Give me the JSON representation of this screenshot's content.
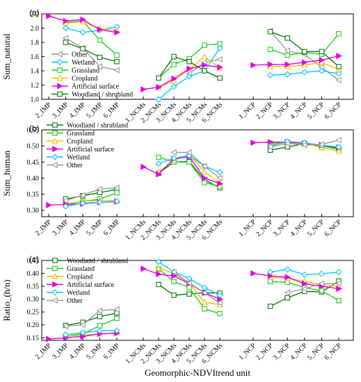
{
  "categories": [
    "2_IMP",
    "3_IMP",
    "4_IMP",
    "5_IMP",
    "6_IMP",
    "1_NCMs",
    "2_NCMs",
    "3_NCMs",
    "4_NCMs",
    "5_NCMs",
    "6_NCMs",
    "1_NCP",
    "2_NCP",
    "3_NCP",
    "4_NCP",
    "5_NCP",
    "6_NCP"
  ],
  "xlabel": "Geomorphic-NDVItrend unit",
  "chart_data": [
    {
      "type": "line",
      "panel": "(a)",
      "ylabel": "Sum_natural",
      "ylim": [
        1.0,
        2.2
      ],
      "yticks": [
        1.0,
        1.2,
        1.4,
        1.6,
        1.8,
        2.0,
        2.2
      ],
      "legend": [
        "Other",
        "Wetland",
        "Grassland",
        "Cropland",
        "Artificial surface",
        "Woodland / shrubland"
      ],
      "series": [
        {
          "name": "Other",
          "color": "#999999",
          "marker": "triangle-left",
          "values": [
            null,
            1.86,
            1.72,
            1.46,
            1.41,
            null,
            null,
            null,
            1.36,
            1.52,
            1.56,
            null,
            1.96,
            1.68,
            1.63,
            1.45,
            1.27
          ]
        },
        {
          "name": "Wetland",
          "color": "#00c8ff",
          "marker": "diamond",
          "values": [
            null,
            2.0,
            1.94,
            1.97,
            2.02,
            null,
            1.0,
            1.18,
            1.32,
            1.4,
            1.72,
            null,
            1.34,
            1.35,
            1.38,
            1.4,
            1.36
          ]
        },
        {
          "name": "Grassland",
          "color": "#22cc22",
          "marker": "square",
          "values": [
            null,
            2.08,
            2.1,
            1.83,
            1.62,
            null,
            1.3,
            1.49,
            1.57,
            1.76,
            1.78,
            null,
            1.7,
            1.62,
            1.66,
            1.63,
            1.92
          ]
        },
        {
          "name": "Cropland",
          "color": "#f2c200",
          "marker": "triangle-up",
          "values": [
            null,
            2.07,
            2.09,
            1.99,
            1.97,
            null,
            1.17,
            1.26,
            1.42,
            1.6,
            1.44,
            null,
            1.46,
            1.46,
            1.48,
            1.52,
            1.42
          ]
        },
        {
          "name": "Artificial surface",
          "color": "#e600e6",
          "marker": "triangle-right",
          "values": [
            2.17,
            2.1,
            2.12,
            1.98,
            1.94,
            1.14,
            1.17,
            1.29,
            1.43,
            1.48,
            1.45,
            1.48,
            1.49,
            1.49,
            1.52,
            1.55,
            1.61
          ]
        },
        {
          "name": "Woodland / shrubland",
          "color": "#0e7a0e",
          "marker": "square",
          "values": [
            null,
            1.8,
            1.71,
            1.59,
            1.53,
            null,
            1.3,
            1.6,
            1.53,
            1.4,
            1.3,
            null,
            1.95,
            1.86,
            1.67,
            1.67,
            1.46
          ]
        }
      ]
    },
    {
      "type": "line",
      "panel": "(b)",
      "ylabel": "Sum_human",
      "ylim": [
        0.28,
        0.55
      ],
      "yticks": [
        0.3,
        0.35,
        0.4,
        0.45,
        0.5,
        0.55
      ],
      "legend": [
        "Woodland / shrubland",
        "Grassland",
        "Cropland",
        "Artificial surface",
        "Wetland",
        "Other"
      ],
      "series": [
        {
          "name": "Woodland / shrubland",
          "color": "#0e7a0e",
          "marker": "square",
          "values": [
            null,
            0.335,
            0.345,
            0.355,
            0.365,
            null,
            0.415,
            0.45,
            0.452,
            0.395,
            0.37,
            null,
            0.487,
            0.497,
            0.507,
            0.5,
            0.493
          ]
        },
        {
          "name": "Grassland",
          "color": "#22cc22",
          "marker": "square",
          "values": [
            null,
            0.318,
            0.327,
            0.335,
            0.354,
            null,
            0.465,
            0.45,
            0.45,
            0.386,
            0.375,
            null,
            0.508,
            0.511,
            0.508,
            0.5,
            0.49
          ]
        },
        {
          "name": "Cropland",
          "color": "#f2c200",
          "marker": "triangle-up",
          "values": [
            null,
            0.32,
            0.328,
            0.33,
            0.33,
            null,
            0.42,
            0.455,
            0.472,
            0.42,
            0.385,
            null,
            0.505,
            0.51,
            0.508,
            0.495,
            0.484
          ]
        },
        {
          "name": "Artificial surface",
          "color": "#e600e6",
          "marker": "triangle-right",
          "values": [
            0.316,
            0.318,
            0.32,
            0.325,
            0.327,
            0.435,
            0.412,
            0.46,
            0.467,
            0.4,
            0.383,
            0.51,
            0.512,
            0.512,
            0.508,
            0.503,
            0.495
          ]
        },
        {
          "name": "Wetland",
          "color": "#00c8ff",
          "marker": "diamond",
          "values": [
            null,
            0.312,
            0.322,
            0.325,
            0.328,
            null,
            0.445,
            0.462,
            0.47,
            0.437,
            0.418,
            null,
            0.5,
            0.514,
            0.51,
            0.502,
            0.497
          ]
        },
        {
          "name": "Other",
          "color": "#999999",
          "marker": "triangle-left",
          "values": [
            null,
            0.33,
            0.347,
            0.366,
            0.37,
            null,
            null,
            0.48,
            0.48,
            0.437,
            0.4,
            null,
            0.497,
            0.508,
            0.503,
            0.505,
            0.518
          ]
        }
      ]
    },
    {
      "type": "line",
      "panel": "(c)",
      "ylabel": "Ratio_(h/n)",
      "ylim": [
        0.14,
        0.45
      ],
      "yticks": [
        0.15,
        0.2,
        0.25,
        0.3,
        0.35,
        0.4,
        0.45
      ],
      "legend": [
        "Woodland / shrubland",
        "Grassland",
        "Cropland",
        "Artificial surface",
        "Wetland",
        "Other"
      ],
      "series": [
        {
          "name": "Woodland / shrubland",
          "color": "#0e7a0e",
          "marker": "square",
          "values": [
            null,
            0.198,
            0.21,
            0.232,
            0.246,
            null,
            0.357,
            0.315,
            0.32,
            0.325,
            0.323,
            null,
            0.272,
            0.305,
            0.33,
            0.328,
            0.37
          ]
        },
        {
          "name": "Grassland",
          "color": "#22cc22",
          "marker": "square",
          "values": [
            null,
            0.155,
            0.165,
            0.197,
            0.225,
            null,
            0.417,
            0.368,
            0.345,
            0.262,
            0.244,
            null,
            0.368,
            0.365,
            0.345,
            0.333,
            0.294
          ]
        },
        {
          "name": "Cropland",
          "color": "#f2c200",
          "marker": "triangle-up",
          "values": [
            null,
            0.155,
            0.16,
            0.165,
            0.17,
            null,
            0.42,
            0.4,
            0.362,
            0.288,
            0.278,
            null,
            0.385,
            0.38,
            0.37,
            0.355,
            0.35
          ]
        },
        {
          "name": "Artificial surface",
          "color": "#e600e6",
          "marker": "triangle-right",
          "values": [
            0.145,
            0.15,
            0.155,
            0.165,
            0.168,
            0.418,
            0.397,
            0.39,
            0.36,
            0.325,
            0.3,
            0.4,
            0.39,
            0.385,
            0.36,
            0.35,
            0.34
          ]
        },
        {
          "name": "Wetland",
          "color": "#00c8ff",
          "marker": "diamond",
          "values": [
            null,
            0.162,
            0.17,
            0.177,
            0.178,
            null,
            0.445,
            0.405,
            0.38,
            0.345,
            0.315,
            null,
            0.405,
            0.415,
            0.395,
            0.398,
            0.405
          ]
        },
        {
          "name": "Other",
          "color": "#999999",
          "marker": "triangle-left",
          "values": [
            null,
            0.195,
            0.2,
            0.255,
            0.26,
            null,
            null,
            0.405,
            0.362,
            0.325,
            0.285,
            null,
            null,
            0.325,
            0.34,
            0.36,
            0.36
          ]
        }
      ]
    }
  ]
}
